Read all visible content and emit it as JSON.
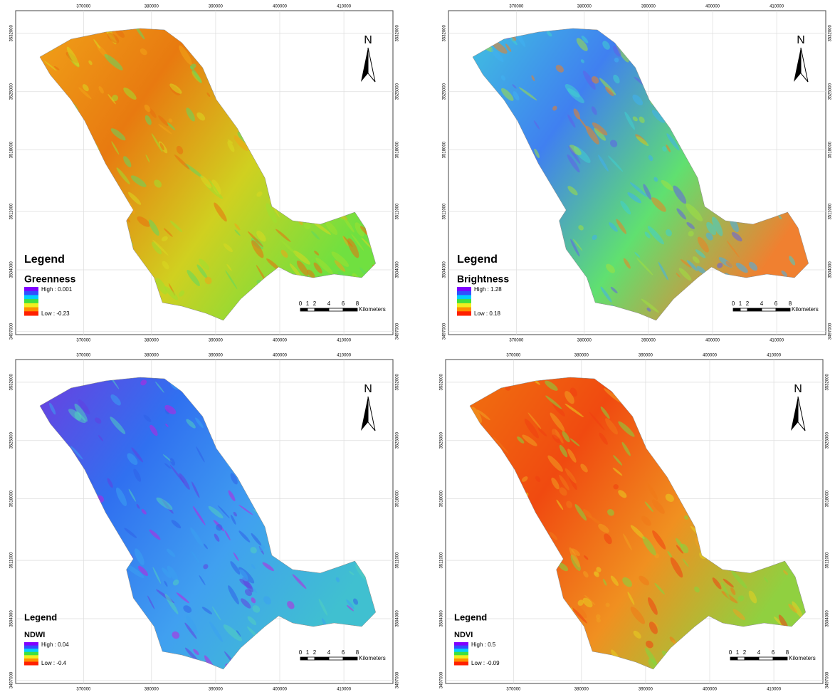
{
  "panels": [
    {
      "title": "Greenness",
      "high": "High : 0.001",
      "low": "Low : -0.23"
    },
    {
      "title": "Brightness",
      "high": "High : 1.28",
      "low": "Low : 0.18"
    },
    {
      "title": "NDWI",
      "high": "High : 0.04",
      "low": "Low : -0.4"
    },
    {
      "title": "NDVI",
      "high": "High : 0.5",
      "low": "Low : -0.09"
    }
  ],
  "legend_label": "Legend",
  "north": "N",
  "x_labels": [
    "370000",
    "380000",
    "390000",
    "400000",
    "410000"
  ],
  "y_labels": [
    "3532000",
    "3525000",
    "3518000",
    "3511000",
    "3504000",
    "3497000"
  ],
  "scale_labels": [
    "0",
    "1",
    "2",
    "4",
    "6",
    "8"
  ],
  "scale_unit": "Kilometers"
}
